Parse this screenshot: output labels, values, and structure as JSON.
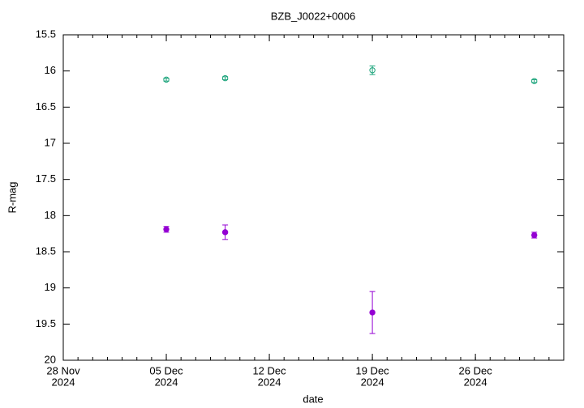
{
  "chart_data": {
    "type": "scatter",
    "title": "BZB_J0022+0006",
    "x_label": "date",
    "y_label": "R-mag",
    "x": [
      "2024-12-05",
      "2024-12-09",
      "2024-12-19",
      "2024-12-30"
    ],
    "series": [
      {
        "color": "#1aa37a",
        "marker": "open",
        "values": [
          16.12,
          16.1,
          15.99,
          16.14
        ],
        "errors": [
          0.02,
          0.02,
          0.06,
          0.02
        ]
      },
      {
        "color": "#9400d3",
        "marker": "filled",
        "values": [
          18.19,
          18.23,
          19.34,
          18.27
        ],
        "errors": [
          0.04,
          0.1,
          0.29,
          0.04
        ]
      }
    ],
    "xlim": [
      "2024-11-28",
      "2025-01-01"
    ],
    "xticks": [
      {
        "value": "2024-11-28",
        "label": [
          "28 Nov",
          "2024"
        ]
      },
      {
        "value": "2024-12-05",
        "label": [
          "05 Dec",
          "2024"
        ]
      },
      {
        "value": "2024-12-12",
        "label": [
          "12 Dec",
          "2024"
        ]
      },
      {
        "value": "2024-12-19",
        "label": [
          "19 Dec",
          "2024"
        ]
      },
      {
        "value": "2024-12-26",
        "label": [
          "26 Dec",
          "2024"
        ]
      }
    ],
    "ylim": [
      15.5,
      20
    ],
    "yticks": [
      15.5,
      16,
      16.5,
      17,
      17.5,
      18,
      18.5,
      19,
      19.5,
      20
    ],
    "y_inverted": true
  }
}
